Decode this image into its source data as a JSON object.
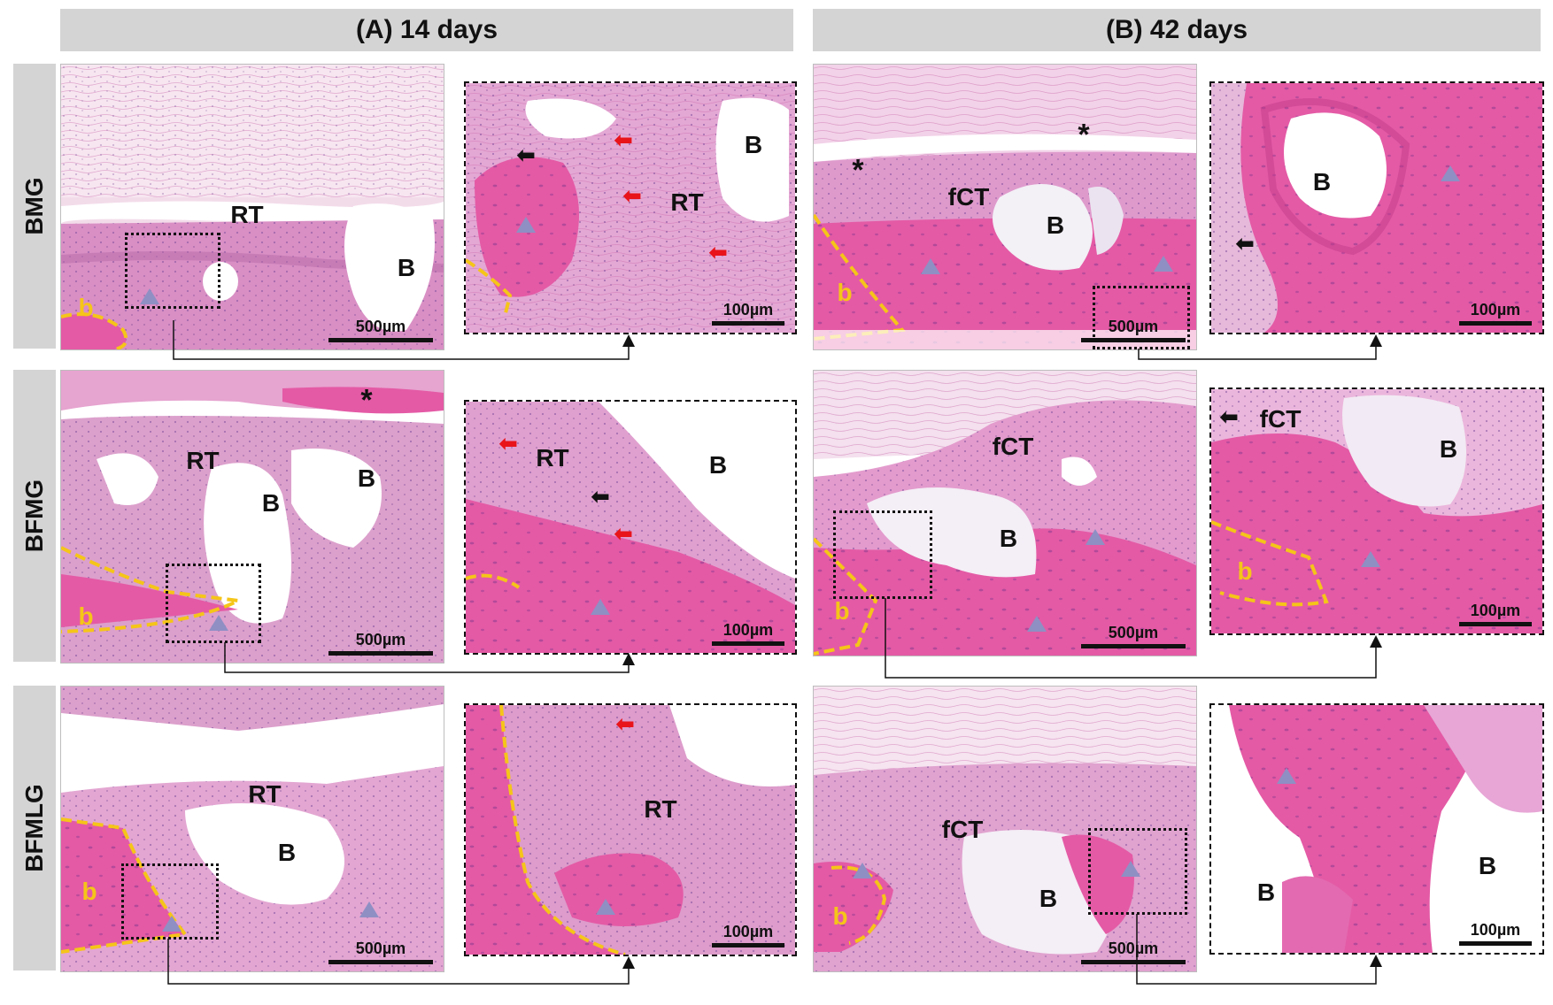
{
  "columns": {
    "a": "(A) 14 days",
    "b": "(B) 42 days"
  },
  "rows": {
    "r1": "BMG",
    "r2": "BFMG",
    "r3": "BFMLG"
  },
  "scales": {
    "low": "500µm",
    "high": "100µm"
  },
  "labels": {
    "rt": "RT",
    "b_upper": "B",
    "b_lower": "b",
    "fct": "fCT",
    "star": "*"
  },
  "colors": {
    "tissue_pink": "#e88cc4",
    "bone_pink": "#e45aa5",
    "bone_outline": "#f5c518",
    "triangle": "#8f8fc4",
    "red_arrow": "#e8141a",
    "header_gray": "#d4d4d4"
  },
  "symbols": {
    "triangle": "triangle-marker-icon",
    "red_arrow": "red-arrow-icon",
    "black_arrow": "black-arrow-icon"
  }
}
